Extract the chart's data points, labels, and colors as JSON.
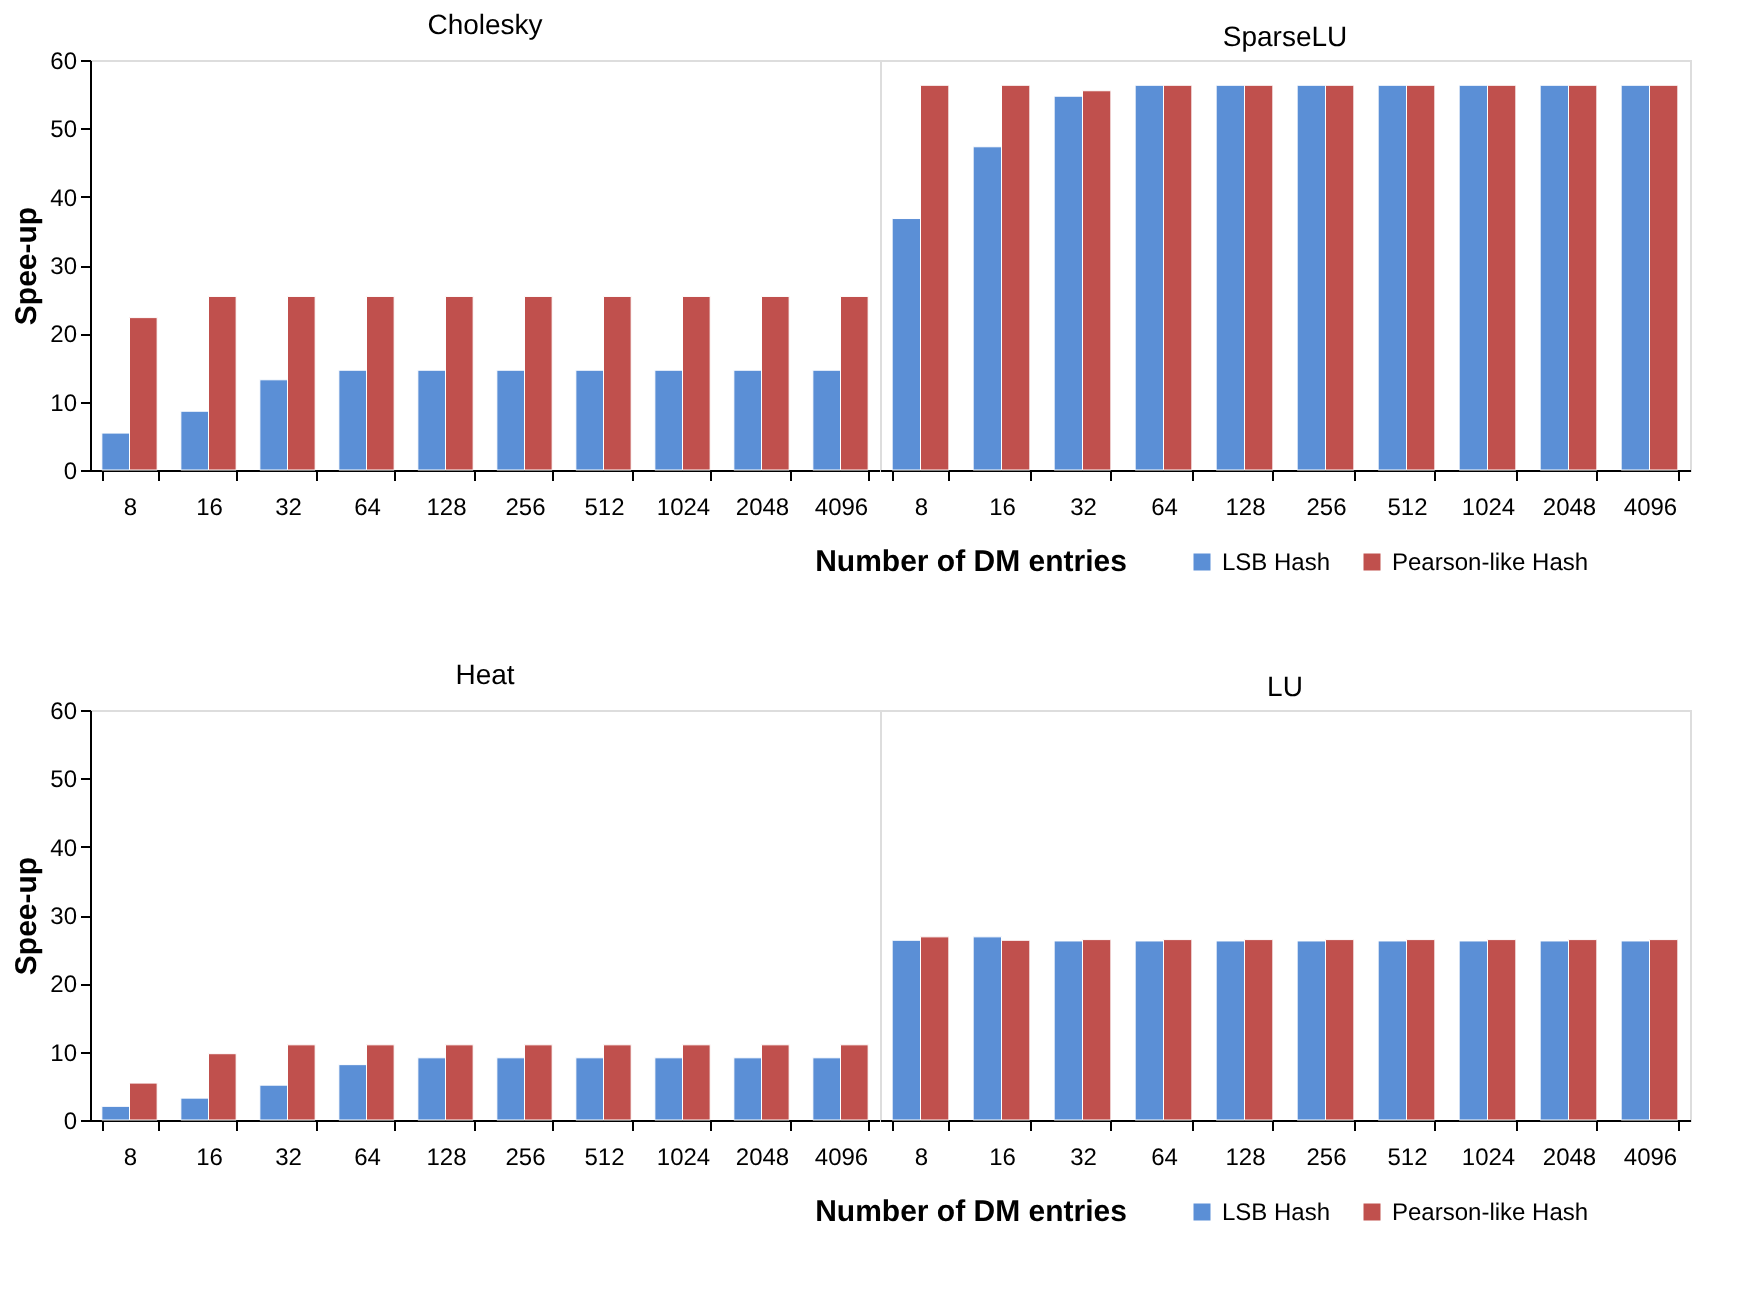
{
  "chart_data": [
    {
      "type": "bar",
      "title": "Cholesky",
      "ylabel": "Spee-up",
      "xlabel": "Number of DM entries",
      "categories": [
        "8",
        "16",
        "32",
        "64",
        "128",
        "256",
        "512",
        "1024",
        "2048",
        "4096"
      ],
      "ylim": [
        0,
        60
      ],
      "yticks": [
        0,
        10,
        20,
        30,
        40,
        50,
        60
      ],
      "grid": false,
      "legend": false,
      "series": [
        {
          "color": "#5b8fd6",
          "values": [
            5.4,
            8.6,
            13.2,
            14.6,
            14.6,
            14.6,
            14.6,
            14.6,
            14.6,
            14.6
          ]
        },
        {
          "color": "#c0504d",
          "values": [
            22.3,
            25.4,
            25.4,
            25.4,
            25.4,
            25.4,
            25.4,
            25.4,
            25.4,
            25.4
          ]
        }
      ]
    },
    {
      "type": "bar",
      "title": "SparseLU",
      "categories": [
        "8",
        "16",
        "32",
        "64",
        "128",
        "256",
        "512",
        "1024",
        "2048",
        "4096"
      ],
      "ylim": [
        0,
        60
      ],
      "tick_labels": "x",
      "grid": false,
      "legend": "bottom right",
      "series": [
        {
          "name": "LSB Hash",
          "color": "#5b8fd6",
          "values": [
            36.8,
            47.3,
            54.7,
            56.3,
            56.3,
            56.3,
            56.3,
            56.3,
            56.3,
            56.3
          ]
        },
        {
          "name": "Pearson-like Hash",
          "color": "#c0504d",
          "values": [
            56.3,
            56.3,
            55.5,
            56.3,
            56.3,
            56.3,
            56.3,
            56.3,
            56.3,
            56.3
          ]
        }
      ]
    },
    {
      "type": "bar",
      "title": "Heat",
      "ylabel": "Spee-up",
      "xlabel": "Number of DM entries",
      "categories": [
        "8",
        "16",
        "32",
        "64",
        "128",
        "256",
        "512",
        "1024",
        "2048",
        "4096"
      ],
      "ylim": [
        0,
        60
      ],
      "yticks": [
        0,
        10,
        20,
        30,
        40,
        50,
        60
      ],
      "grid": false,
      "legend": false,
      "series": [
        {
          "color": "#5b8fd6",
          "values": [
            2.0,
            3.2,
            5.1,
            8.1,
            9.1,
            9.1,
            9.1,
            9.1,
            9.1,
            9.1
          ]
        },
        {
          "color": "#c0504d",
          "values": [
            5.4,
            9.7,
            11.0,
            11.0,
            11.0,
            11.0,
            11.0,
            11.0,
            11.0,
            11.0
          ]
        }
      ]
    },
    {
      "type": "bar",
      "title": "LU",
      "categories": [
        "8",
        "16",
        "32",
        "64",
        "128",
        "256",
        "512",
        "1024",
        "2048",
        "4096"
      ],
      "ylim": [
        0,
        60
      ],
      "tick_labels": "x",
      "grid": false,
      "legend": "bottom right",
      "series": [
        {
          "name": "LSB Hash",
          "color": "#5b8fd6",
          "values": [
            26.3,
            26.8,
            26.2,
            26.2,
            26.2,
            26.2,
            26.2,
            26.2,
            26.2,
            26.2
          ]
        },
        {
          "name": "Pearson-like Hash",
          "color": "#c0504d",
          "values": [
            26.8,
            26.3,
            26.4,
            26.4,
            26.4,
            26.4,
            26.4,
            26.4,
            26.4,
            26.4
          ]
        }
      ]
    }
  ]
}
